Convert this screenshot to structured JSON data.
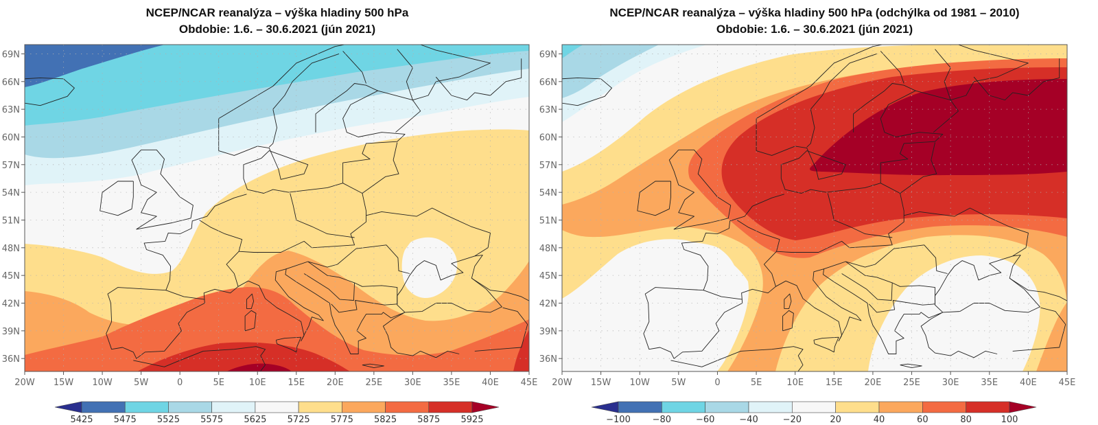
{
  "panels": [
    {
      "id": "absolute",
      "title_line1": "NCEP/NCAR reanalýza – výška hladiny 500 hPa",
      "title_line2": "Obdobie: 1.6. – 30.6.2021 (jún 2021)",
      "variable": "500 hPa geopotential height (gpm)",
      "colorbar": {
        "labels": [
          "5425",
          "5475",
          "5525",
          "5575",
          "5625",
          "5725",
          "5775",
          "5825",
          "5875",
          "5925"
        ],
        "colors": [
          "#2a2f8f",
          "#4271b4",
          "#6fd5e4",
          "#a9d8e6",
          "#e0f3f8",
          "#f7f7f7",
          "#fede8c",
          "#fba85d",
          "#f36b42",
          "#d62f27",
          "#a50026"
        ],
        "extend": "both"
      }
    },
    {
      "id": "anomaly",
      "title_line1": "NCEP/NCAR reanalýza – výška hladiny 500 hPa (odchýlka od 1981 – 2010)",
      "title_line2": "Obdobie: 1.6. – 30.6.2021 (jún 2021)",
      "variable": "500 hPa geopotential height anomaly vs 1981–2010 (gpm)",
      "colorbar": {
        "labels": [
          "−100",
          "−80",
          "−60",
          "−40",
          "−20",
          "20",
          "40",
          "60",
          "80",
          "100"
        ],
        "colors": [
          "#2a2f8f",
          "#4271b4",
          "#6fd5e4",
          "#a9d8e6",
          "#e0f3f8",
          "#f7f7f7",
          "#fede8c",
          "#fba85d",
          "#f36b42",
          "#d62f27",
          "#a50026"
        ],
        "extend": "both"
      }
    }
  ],
  "axes": {
    "x_ticks": [
      "20W",
      "15W",
      "10W",
      "5W",
      "0",
      "5E",
      "10E",
      "15E",
      "20E",
      "25E",
      "30E",
      "35E",
      "40E",
      "45E"
    ],
    "x_values": [
      -20,
      -15,
      -10,
      -5,
      0,
      5,
      10,
      15,
      20,
      25,
      30,
      35,
      40,
      45
    ],
    "y_ticks": [
      "69N",
      "66N",
      "63N",
      "60N",
      "57N",
      "54N",
      "51N",
      "48N",
      "45N",
      "42N",
      "39N",
      "36N"
    ],
    "y_values": [
      69,
      66,
      63,
      60,
      57,
      54,
      51,
      48,
      45,
      42,
      39,
      36
    ],
    "lon_range": [
      -20,
      45
    ],
    "lat_range": [
      34.6,
      70
    ],
    "grid": "dotted"
  },
  "chart_data": [
    {
      "type": "heatmap",
      "title": "NCEP/NCAR reanalýza – výška hladiny 500 hPa",
      "subtitle": "Obdobie: 1.6. – 30.6.2021 (jún 2021)",
      "xlabel": "",
      "ylabel": "",
      "xlim": [
        -20,
        45
      ],
      "ylim": [
        34.6,
        70
      ],
      "levels": [
        5425,
        5475,
        5525,
        5575,
        5625,
        5725,
        5775,
        5825,
        5875,
        5925
      ],
      "contour_bands": [
        {
          "range": ">5925 (max south, N Africa)",
          "approx_region": "Algeria/Tunisia 34-37N, 0-15E"
        },
        {
          "range": "5875-5925",
          "approx_region": "W Mediterranean south band 35-39N"
        },
        {
          "range": "5825-5875",
          "approx_region": "Iberia south, Italy, Greece, Turkey east"
        },
        {
          "range": "5775-5825",
          "approx_region": "Iberia, S France, Balkans"
        },
        {
          "range": "5725-5775",
          "approx_region": "France, Central & Eastern Europe"
        },
        {
          "range": "5625-5725",
          "approx_region": "British Isles, Scandinavia, Black Sea cell"
        },
        {
          "range": "5575-5625",
          "approx_region": "Norwegian Sea"
        },
        {
          "range": "5525-5575",
          "approx_region": "N of Iceland band"
        },
        {
          "range": "5475-5525",
          "approx_region": "Iceland"
        },
        {
          "range": "5425-5475",
          "approx_region": "NW corner 67-70N, 20W-5W"
        }
      ]
    },
    {
      "type": "heatmap",
      "title": "NCEP/NCAR reanalýza – výška hladiny 500 hPa (odchýlka od 1981 – 2010)",
      "subtitle": "Obdobie: 1.6. – 30.6.2021 (jún 2021)",
      "xlabel": "",
      "ylabel": "",
      "xlim": [
        -20,
        45
      ],
      "ylim": [
        34.6,
        70
      ],
      "levels": [
        -100,
        -80,
        -60,
        -40,
        -20,
        20,
        40,
        60,
        80,
        100
      ],
      "contour_bands": [
        {
          "range": ">100",
          "approx_region": "Scandinavia, Baltic, NW Russia 56-64N"
        },
        {
          "range": "80-100",
          "approx_region": "North Sea to Russia ring"
        },
        {
          "range": "60-80",
          "approx_region": "Scotland, Germany, Poland, Ukraine north"
        },
        {
          "range": "40-60",
          "approx_region": "Ireland, France, Italy, Caucasus"
        },
        {
          "range": "20-40",
          "approx_region": "Bay of Biscay arc, Adriatic arc"
        },
        {
          "range": "-20-20",
          "approx_region": "Iberia/Atlantic, Balkans/Black Sea/Turkey, Iceland south"
        },
        {
          "range": "-40--20",
          "approx_region": "Iceland"
        },
        {
          "range": "-60--40",
          "approx_region": "NW corner near Greenland"
        }
      ]
    }
  ]
}
